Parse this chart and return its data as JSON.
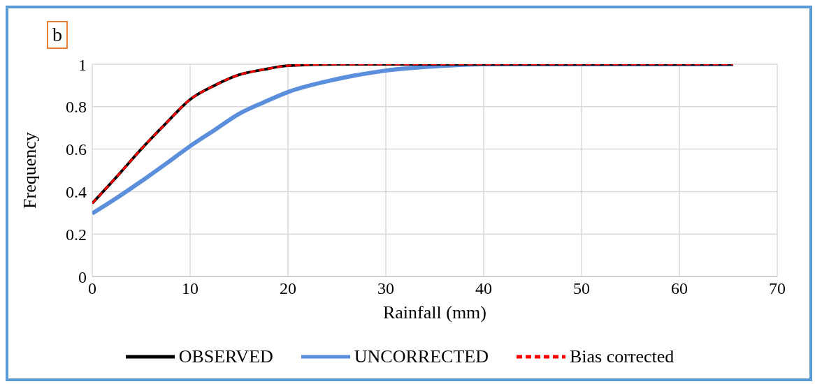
{
  "chart_data": {
    "type": "line",
    "annotations": [
      "b"
    ],
    "xlabel": "Rainfall (mm)",
    "ylabel": "Frequency",
    "xlim": [
      0,
      70
    ],
    "xticks": [
      0,
      10,
      20,
      30,
      40,
      50,
      60,
      70
    ],
    "ylim": [
      0,
      1
    ],
    "yticks": [
      0,
      0.2,
      0.4,
      0.6,
      0.8,
      1
    ],
    "grid": true,
    "legend": "bottom",
    "marker": "none",
    "series": [
      {
        "name": "OBSERVED",
        "color": "#000000",
        "line_style": "solid",
        "x": [
          0,
          2.5,
          5,
          7.5,
          10,
          12.5,
          15,
          17.5,
          20,
          25,
          30,
          40,
          50,
          60,
          65.5
        ],
        "values": [
          0.345,
          0.47,
          0.6,
          0.72,
          0.834,
          0.9,
          0.95,
          0.975,
          0.993,
          1,
          1,
          1,
          1,
          1,
          1
        ]
      },
      {
        "name": "UNCORRECTED",
        "color": "#5b8fdc",
        "line_style": "solid",
        "x": [
          0,
          2.5,
          5,
          7.5,
          10,
          12.5,
          15,
          17.5,
          20,
          25,
          30,
          35,
          40,
          50,
          60,
          65.5
        ],
        "values": [
          0.297,
          0.37,
          0.448,
          0.53,
          0.614,
          0.69,
          0.766,
          0.82,
          0.869,
          0.93,
          0.97,
          0.99,
          1,
          1,
          1,
          1
        ]
      },
      {
        "name": "Bias corrected",
        "color": "#ff0000",
        "line_style": "dashed",
        "x": [
          0,
          2.5,
          5,
          7.5,
          10,
          12.5,
          15,
          17.5,
          20,
          25,
          30,
          40,
          50,
          60,
          65.5
        ],
        "values": [
          0.345,
          0.47,
          0.6,
          0.72,
          0.834,
          0.9,
          0.95,
          0.975,
          0.993,
          1,
          1,
          1,
          1,
          1,
          1
        ]
      }
    ]
  }
}
